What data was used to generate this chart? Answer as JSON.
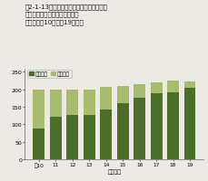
{
  "years": [
    "平10",
    "11",
    "12",
    "13",
    "14",
    "15",
    "16",
    "17",
    "18",
    "19"
  ],
  "achieved": [
    88,
    122,
    128,
    126,
    143,
    161,
    176,
    190,
    191,
    204
  ],
  "valid": [
    199,
    199,
    200,
    200,
    207,
    211,
    216,
    221,
    226,
    223
  ],
  "color_achieved": "#4a6e2a",
  "color_valid": "#a8bc6e",
  "ylabel_ticks": [
    0,
    50,
    100,
    150,
    200,
    250
  ],
  "ylim": [
    0,
    260
  ],
  "legend_achieved": "達成局数",
  "legend_valid": "有効局数",
  "xlabel": "（年度）",
  "title_line1": "図2-1-13　対策地域における二酸化窒素の",
  "title_line2": "環境基準達成状況の推移（自排",
  "title_line3": "局）（平成10年度～19年度）",
  "bg_color": "#edeae5",
  "bar_width": 0.7
}
